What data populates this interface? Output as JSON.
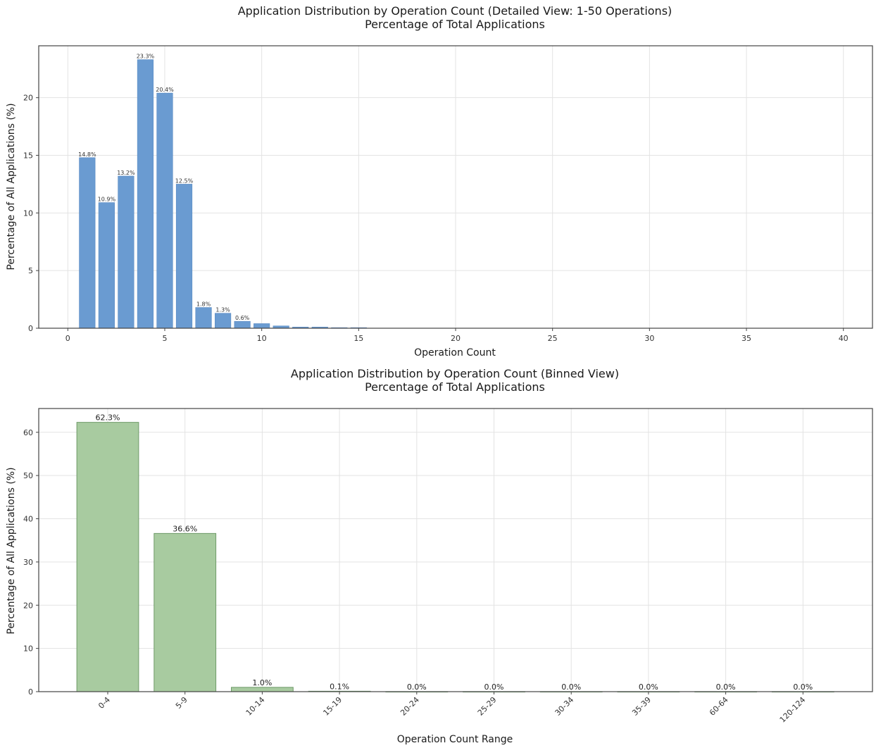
{
  "chart_data": [
    {
      "type": "bar",
      "title": "Application Distribution by Operation Count (Detailed View: 1-50 Operations)",
      "subtitle": "Percentage of Total Applications",
      "xlabel": "Operation Count",
      "ylabel": "Percentage of All Applications (%)",
      "xlim": [
        -1.5,
        41.5
      ],
      "ylim": [
        0,
        24.5
      ],
      "xticks": [
        0,
        5,
        10,
        15,
        20,
        25,
        30,
        35,
        40
      ],
      "yticks": [
        0,
        5,
        10,
        15,
        20
      ],
      "grid": true,
      "color": "#6a9bd1",
      "x": [
        1,
        2,
        3,
        4,
        5,
        6,
        7,
        8,
        9,
        10,
        11,
        12,
        13,
        14,
        15
      ],
      "values": [
        14.8,
        10.9,
        13.2,
        23.3,
        20.4,
        12.5,
        1.8,
        1.3,
        0.6,
        0.4,
        0.2,
        0.1,
        0.1,
        0.05,
        0.05
      ],
      "labels": [
        "14.8%",
        "10.9%",
        "13.2%",
        "23.3%",
        "20.4%",
        "12.5%",
        "1.8%",
        "1.3%",
        "0.6%",
        "",
        "",
        "",
        "",
        "",
        ""
      ]
    },
    {
      "type": "bar",
      "title": "Application Distribution by Operation Count (Binned View)",
      "subtitle": "Percentage of Total Applications",
      "xlabel": "Operation Count Range",
      "ylabel": "Percentage of All Applications (%)",
      "ylim": [
        0,
        65.5
      ],
      "yticks": [
        0,
        10,
        20,
        30,
        40,
        50,
        60
      ],
      "grid": true,
      "color": "#a8cba0",
      "edge_color": "#6e9a68",
      "categories": [
        "0-4",
        "5-9",
        "10-14",
        "15-19",
        "20-24",
        "25-29",
        "30-34",
        "35-39",
        "60-64",
        "120-124"
      ],
      "values": [
        62.3,
        36.6,
        1.0,
        0.1,
        0.0,
        0.0,
        0.0,
        0.0,
        0.0,
        0.0
      ],
      "labels": [
        "62.3%",
        "36.6%",
        "1.0%",
        "0.1%",
        "0.0%",
        "0.0%",
        "0.0%",
        "0.0%",
        "0.0%",
        "0.0%"
      ]
    }
  ]
}
